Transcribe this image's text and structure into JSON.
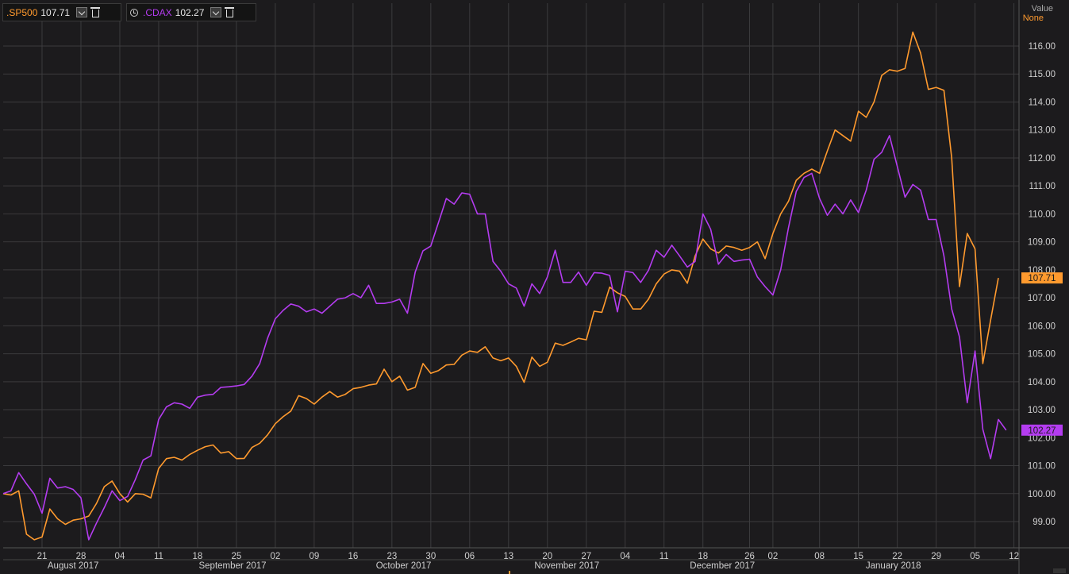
{
  "legend": {
    "sp500": {
      "label": ".SP500",
      "value": "107.71",
      "color": "#ff9a2e"
    },
    "cdax": {
      "label": ".CDAX",
      "value": "102.27",
      "color": "#b43cf0"
    }
  },
  "y_axis_title": "Value",
  "y_axis_subtitle": "None",
  "chart_data": {
    "type": "line",
    "ylim": [
      98.3,
      116.8
    ],
    "yticks": [
      99,
      100,
      101,
      102,
      103,
      104,
      105,
      106,
      107,
      108,
      109,
      110,
      111,
      112,
      113,
      114,
      115,
      116
    ],
    "ytick_labels": [
      "99.00",
      "100.00",
      "101.00",
      "102.00",
      "103.00",
      "104.00",
      "105.00",
      "106.00",
      "107.00",
      "108.00",
      "109.00",
      "110.00",
      "111.00",
      "112.00",
      "113.00",
      "114.00",
      "115.00",
      "116.00"
    ],
    "xtick_labels": [
      "21",
      "28",
      "04",
      "11",
      "18",
      "25",
      "02",
      "09",
      "16",
      "23",
      "30",
      "06",
      "13",
      "20",
      "27",
      "04",
      "11",
      "18",
      "26",
      "02",
      "08",
      "15",
      "22",
      "29",
      "05",
      "12"
    ],
    "xtick_index": [
      5,
      10,
      15,
      20,
      25,
      30,
      35,
      40,
      45,
      50,
      55,
      60,
      65,
      70,
      75,
      80,
      85,
      90,
      96,
      99,
      105,
      110,
      115,
      120,
      125,
      130
    ],
    "month_labels": [
      {
        "label": "August 2017",
        "at": 9
      },
      {
        "label": "September 2017",
        "at": 29.5
      },
      {
        "label": "October 2017",
        "at": 51.5
      },
      {
        "label": "November 2017",
        "at": 72.5
      },
      {
        "label": "December 2017",
        "at": 92.5
      },
      {
        "label": "January 2018",
        "at": 114.5
      }
    ],
    "grid": true,
    "series": [
      {
        "name": ".SP500",
        "color": "#ff9a2e",
        "last_value_label": "107.71",
        "values": [
          100.0,
          99.95,
          100.1,
          98.55,
          98.35,
          98.45,
          99.45,
          99.1,
          98.9,
          99.05,
          99.1,
          99.2,
          99.65,
          100.25,
          100.45,
          100.0,
          99.7,
          100.0,
          99.98,
          99.85,
          100.9,
          101.25,
          101.3,
          101.2,
          101.4,
          101.55,
          101.68,
          101.74,
          101.45,
          101.5,
          101.25,
          101.26,
          101.65,
          101.8,
          102.1,
          102.5,
          102.75,
          102.95,
          103.5,
          103.4,
          103.2,
          103.45,
          103.65,
          103.45,
          103.55,
          103.75,
          103.8,
          103.88,
          103.92,
          104.45,
          104.0,
          104.2,
          103.7,
          103.8,
          104.65,
          104.3,
          104.4,
          104.6,
          104.62,
          104.95,
          105.1,
          105.05,
          105.25,
          104.85,
          104.75,
          104.85,
          104.55,
          103.98,
          104.88,
          104.55,
          104.7,
          105.38,
          105.3,
          105.42,
          105.55,
          105.5,
          106.52,
          106.48,
          107.38,
          107.18,
          107.05,
          106.6,
          106.6,
          106.95,
          107.5,
          107.85,
          108.0,
          107.95,
          107.52,
          108.5,
          109.1,
          108.75,
          108.6,
          108.85,
          108.8,
          108.7,
          108.8,
          109.0,
          108.4,
          109.3,
          110.0,
          110.45,
          111.2,
          111.45,
          111.6,
          111.45,
          112.25,
          113.0,
          112.8,
          112.6,
          113.67,
          113.45,
          114.0,
          114.95,
          115.15,
          115.1,
          115.2,
          116.5,
          115.75,
          114.45,
          114.52,
          114.42,
          112.0,
          107.4,
          109.3,
          108.75,
          104.65,
          106.2,
          107.71
        ]
      },
      {
        "name": ".CDAX",
        "color": "#b43cf0",
        "last_value_label": "102.27",
        "values": [
          100.0,
          100.1,
          100.75,
          100.35,
          99.98,
          99.3,
          100.55,
          100.2,
          100.25,
          100.15,
          99.85,
          98.35,
          98.95,
          99.5,
          100.1,
          99.75,
          99.9,
          100.5,
          101.2,
          101.35,
          102.65,
          103.1,
          103.25,
          103.2,
          103.05,
          103.45,
          103.52,
          103.55,
          103.8,
          103.82,
          103.85,
          103.9,
          104.2,
          104.65,
          105.55,
          106.25,
          106.55,
          106.78,
          106.7,
          106.5,
          106.6,
          106.45,
          106.7,
          106.95,
          107.0,
          107.15,
          107.0,
          107.45,
          106.8,
          106.8,
          106.85,
          106.95,
          106.45,
          107.92,
          108.68,
          108.85,
          109.7,
          110.55,
          110.35,
          110.75,
          110.7,
          110.0,
          110.0,
          108.3,
          107.95,
          107.5,
          107.35,
          106.7,
          107.5,
          107.15,
          107.75,
          108.7,
          107.55,
          107.55,
          107.92,
          107.45,
          107.9,
          107.88,
          107.8,
          106.5,
          107.95,
          107.9,
          107.55,
          107.98,
          108.7,
          108.45,
          108.88,
          108.5,
          108.1,
          108.3,
          110.0,
          109.45,
          108.2,
          108.55,
          108.3,
          108.35,
          108.38,
          107.75,
          107.4,
          107.1,
          108.0,
          109.5,
          110.8,
          111.3,
          111.45,
          110.55,
          109.95,
          110.35,
          110.0,
          110.5,
          110.05,
          110.85,
          111.95,
          112.2,
          112.8,
          111.7,
          110.6,
          111.05,
          110.85,
          109.8,
          109.8,
          108.5,
          106.6,
          105.6,
          103.25,
          105.1,
          102.3,
          101.25,
          102.65,
          102.27
        ]
      }
    ]
  }
}
